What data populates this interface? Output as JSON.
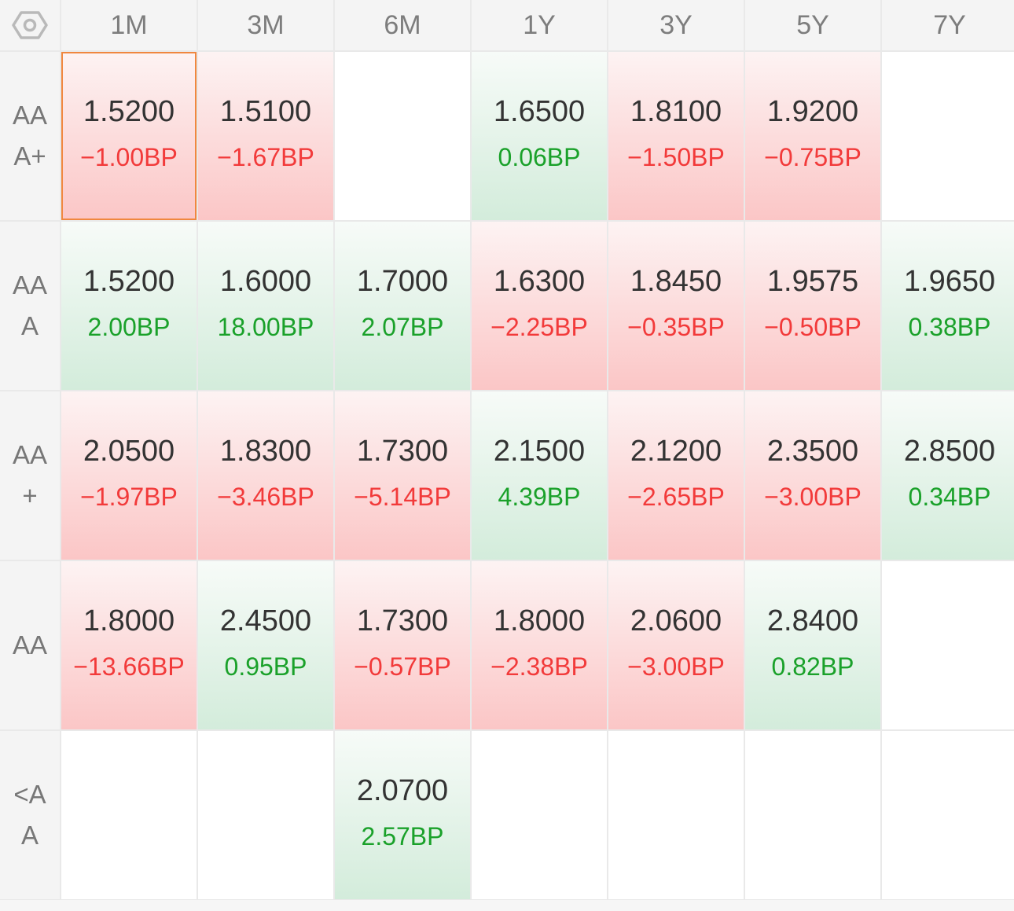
{
  "columns": [
    "1M",
    "3M",
    "6M",
    "1Y",
    "3Y",
    "5Y",
    "7Y"
  ],
  "corner_icon": "settings-hexagon-icon",
  "colors": {
    "up": "#1aa12a",
    "down": "#f23a3a",
    "selected_border": "#f0873f"
  },
  "rows": [
    {
      "label": "AA\nA+",
      "cells": [
        {
          "value": "1.5200",
          "change": "−1.00BP",
          "dir": "down",
          "selected": true
        },
        {
          "value": "1.5100",
          "change": "−1.67BP",
          "dir": "down"
        },
        null,
        {
          "value": "1.6500",
          "change": "0.06BP",
          "dir": "up"
        },
        {
          "value": "1.8100",
          "change": "−1.50BP",
          "dir": "down"
        },
        {
          "value": "1.9200",
          "change": "−0.75BP",
          "dir": "down"
        },
        null
      ]
    },
    {
      "label": "AA\nA",
      "cells": [
        {
          "value": "1.5200",
          "change": "2.00BP",
          "dir": "up"
        },
        {
          "value": "1.6000",
          "change": "18.00BP",
          "dir": "up"
        },
        {
          "value": "1.7000",
          "change": "2.07BP",
          "dir": "up"
        },
        {
          "value": "1.6300",
          "change": "−2.25BP",
          "dir": "down"
        },
        {
          "value": "1.8450",
          "change": "−0.35BP",
          "dir": "down"
        },
        {
          "value": "1.9575",
          "change": "−0.50BP",
          "dir": "down"
        },
        {
          "value": "1.9650",
          "change": "0.38BP",
          "dir": "up"
        }
      ]
    },
    {
      "label": "AA\n+",
      "cells": [
        {
          "value": "2.0500",
          "change": "−1.97BP",
          "dir": "down"
        },
        {
          "value": "1.8300",
          "change": "−3.46BP",
          "dir": "down"
        },
        {
          "value": "1.7300",
          "change": "−5.14BP",
          "dir": "down"
        },
        {
          "value": "2.1500",
          "change": "4.39BP",
          "dir": "up"
        },
        {
          "value": "2.1200",
          "change": "−2.65BP",
          "dir": "down"
        },
        {
          "value": "2.3500",
          "change": "−3.00BP",
          "dir": "down"
        },
        {
          "value": "2.8500",
          "change": "0.34BP",
          "dir": "up"
        }
      ]
    },
    {
      "label": "AA",
      "cells": [
        {
          "value": "1.8000",
          "change": "−13.66BP",
          "dir": "down"
        },
        {
          "value": "2.4500",
          "change": "0.95BP",
          "dir": "up"
        },
        {
          "value": "1.7300",
          "change": "−0.57BP",
          "dir": "down"
        },
        {
          "value": "1.8000",
          "change": "−2.38BP",
          "dir": "down"
        },
        {
          "value": "2.0600",
          "change": "−3.00BP",
          "dir": "down"
        },
        {
          "value": "2.8400",
          "change": "0.82BP",
          "dir": "up"
        },
        null
      ]
    },
    {
      "label": "<A\nA",
      "cells": [
        null,
        null,
        {
          "value": "2.0700",
          "change": "2.57BP",
          "dir": "up"
        },
        null,
        null,
        null,
        null
      ]
    }
  ]
}
